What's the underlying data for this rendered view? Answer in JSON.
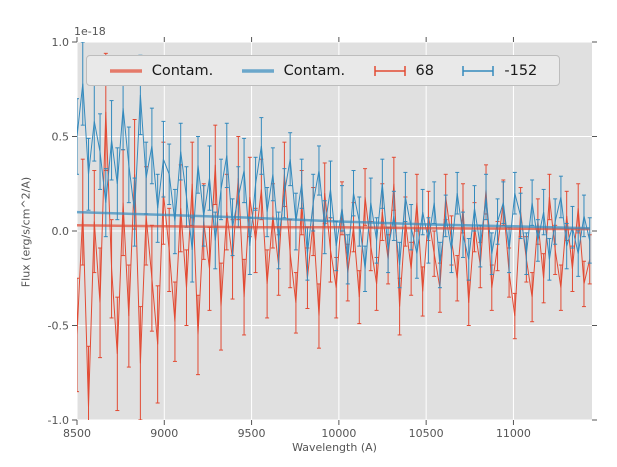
{
  "chart_data": {
    "type": "line",
    "title": "",
    "xlabel": "Wavelength (A)",
    "ylabel": "Flux (erg/s/cm^2/A)",
    "y_offset_label": "1e-18",
    "xlim": [
      8500,
      11450
    ],
    "ylim": [
      -1.0,
      1.0
    ],
    "xticks": [
      8500,
      9000,
      9500,
      10000,
      10500,
      11000
    ],
    "xtick_labels": [
      "8500",
      "9000",
      "9500",
      "10000",
      "10500",
      "11000"
    ],
    "yticks": [
      -1.0,
      -0.5,
      0.0,
      0.5,
      1.0
    ],
    "ytick_labels": [
      "-1.0",
      "-0.5",
      "0.0",
      "0.5",
      "1.0"
    ],
    "grid": true,
    "legend_position": "upper center horizontal",
    "colors": {
      "axes_background": "#e0e0e0",
      "grid": "#ffffff",
      "ticks": "#555555",
      "red": "#E24A33",
      "blue": "#348ABD"
    },
    "x": [
      8500,
      8533,
      8566,
      8599,
      8632,
      8665,
      8698,
      8731,
      8764,
      8797,
      8830,
      8863,
      8896,
      8929,
      8962,
      8995,
      9028,
      9061,
      9094,
      9127,
      9160,
      9193,
      9226,
      9259,
      9292,
      9325,
      9358,
      9391,
      9424,
      9457,
      9490,
      9523,
      9556,
      9589,
      9622,
      9655,
      9688,
      9721,
      9754,
      9787,
      9820,
      9853,
      9886,
      9919,
      9952,
      9985,
      10018,
      10051,
      10084,
      10117,
      10150,
      10183,
      10216,
      10249,
      10282,
      10315,
      10348,
      10381,
      10414,
      10447,
      10480,
      10513,
      10546,
      10579,
      10612,
      10645,
      10678,
      10711,
      10744,
      10777,
      10810,
      10843,
      10876,
      10909,
      10942,
      10975,
      11008,
      11041,
      11074,
      11107,
      11140,
      11173,
      11206,
      11239,
      11272,
      11305,
      11338,
      11371,
      11404,
      11437
    ],
    "series": [
      {
        "name": "Contam.",
        "type": "line",
        "color": "#E24A33",
        "opacity": 0.7,
        "width": 2.5,
        "x": [
          8500,
          9000,
          9500,
          10000,
          10500,
          11000,
          11437
        ],
        "y": [
          0.03,
          0.025,
          0.02,
          0.02,
          0.015,
          0.012,
          0.01
        ]
      },
      {
        "name": "Contam.",
        "type": "line",
        "color": "#348ABD",
        "opacity": 0.7,
        "width": 2.5,
        "x": [
          8500,
          9000,
          9500,
          10000,
          10500,
          11000,
          11437
        ],
        "y": [
          0.1,
          0.085,
          0.07,
          0.05,
          0.035,
          0.025,
          0.015
        ]
      },
      {
        "name": "68",
        "type": "errorbar",
        "color": "#E24A33",
        "y": [
          -0.55,
          0.1,
          -0.93,
          0.05,
          -0.38,
          0.63,
          -0.2,
          -0.65,
          0.15,
          -0.45,
          0.3,
          -0.7,
          0.08,
          -0.25,
          -0.6,
          0.2,
          -0.1,
          -0.48,
          0.12,
          -0.3,
          0.25,
          -0.55,
          0.05,
          -0.2,
          0.35,
          -0.4,
          0.1,
          -0.15,
          0.28,
          -0.35,
          0.18,
          -0.05,
          0.22,
          -0.28,
          0.08,
          -0.18,
          0.3,
          -0.12,
          -0.38,
          0.15,
          -0.25,
          0.05,
          -0.45,
          0.2,
          -0.1,
          -0.3,
          0.12,
          -0.22,
          0.02,
          -0.35,
          0.18,
          -0.08,
          -0.28,
          0.1,
          -0.15,
          0.25,
          -0.4,
          0.05,
          -0.2,
          0.15,
          -0.32,
          0.08,
          -0.12,
          -0.3,
          0.18,
          -0.05,
          -0.25,
          0.12,
          -0.38,
          0.02,
          -0.18,
          0.22,
          -0.3,
          -0.08,
          0.15,
          -0.22,
          -0.45,
          0.1,
          -0.15,
          -0.35,
          0.05,
          -0.25,
          0.18,
          -0.1,
          -0.3,
          0.08,
          -0.2,
          0.12,
          -0.28,
          -0.15
        ],
        "yerr": [
          0.3,
          0.28,
          0.32,
          0.27,
          0.29,
          0.31,
          0.26,
          0.3,
          0.28,
          0.27,
          0.29,
          0.3,
          0.26,
          0.28,
          0.31,
          0.27,
          0.22,
          0.21,
          0.23,
          0.2,
          0.22,
          0.21,
          0.2,
          0.22,
          0.21,
          0.23,
          0.2,
          0.21,
          0.22,
          0.2,
          0.21,
          0.17,
          0.16,
          0.18,
          0.17,
          0.16,
          0.17,
          0.18,
          0.16,
          0.17,
          0.16,
          0.18,
          0.17,
          0.16,
          0.17,
          0.16,
          0.14,
          0.15,
          0.13,
          0.14,
          0.15,
          0.13,
          0.14,
          0.15,
          0.13,
          0.14,
          0.15,
          0.13,
          0.14,
          0.15,
          0.13,
          0.13,
          0.12,
          0.13,
          0.12,
          0.13,
          0.12,
          0.13,
          0.12,
          0.13,
          0.12,
          0.13,
          0.12,
          0.13,
          0.12,
          0.13,
          0.12,
          0.13,
          0.12,
          0.13,
          0.12,
          0.13,
          0.12,
          0.13,
          0.12,
          0.13,
          0.12,
          0.13,
          0.12,
          0.13
        ]
      },
      {
        "name": "-152",
        "type": "errorbar",
        "color": "#348ABD",
        "y": [
          0.5,
          0.78,
          0.3,
          0.58,
          0.42,
          0.15,
          0.48,
          0.25,
          0.65,
          0.35,
          0.1,
          0.72,
          0.28,
          0.45,
          0.12,
          0.38,
          0.3,
          0.05,
          0.42,
          0.18,
          -0.1,
          0.35,
          0.08,
          0.28,
          -0.05,
          0.22,
          0.4,
          0.02,
          0.18,
          0.32,
          -0.08,
          0.25,
          0.45,
          0.1,
          0.3,
          -0.05,
          0.2,
          0.38,
          0.05,
          0.25,
          -0.12,
          0.15,
          0.32,
          0.02,
          0.22,
          -0.08,
          0.12,
          -0.15,
          0.2,
          0.05,
          -0.2,
          0.15,
          -0.05,
          0.25,
          -0.1,
          0.08,
          -0.18,
          0.18,
          0.02,
          -0.12,
          0.1,
          -0.05,
          0.15,
          -0.18,
          0.08,
          -0.1,
          0.2,
          -0.02,
          -0.15,
          0.12,
          -0.08,
          0.18,
          -0.12,
          0.05,
          0.15,
          -0.1,
          0.2,
          0.08,
          -0.12,
          0.15,
          -0.05,
          0.1,
          -0.15,
          0.05,
          0.18,
          -0.08,
          0.02,
          -0.12,
          0.08,
          -0.05
        ],
        "yerr": [
          0.2,
          0.22,
          0.19,
          0.21,
          0.2,
          0.18,
          0.21,
          0.19,
          0.22,
          0.2,
          0.18,
          0.21,
          0.19,
          0.2,
          0.18,
          0.2,
          0.16,
          0.17,
          0.15,
          0.16,
          0.17,
          0.15,
          0.16,
          0.17,
          0.15,
          0.16,
          0.17,
          0.15,
          0.16,
          0.17,
          0.15,
          0.14,
          0.15,
          0.13,
          0.14,
          0.15,
          0.13,
          0.14,
          0.15,
          0.13,
          0.14,
          0.15,
          0.13,
          0.14,
          0.15,
          0.13,
          0.12,
          0.13,
          0.12,
          0.13,
          0.12,
          0.13,
          0.12,
          0.13,
          0.12,
          0.13,
          0.12,
          0.13,
          0.12,
          0.13,
          0.12,
          0.12,
          0.11,
          0.12,
          0.11,
          0.12,
          0.11,
          0.12,
          0.11,
          0.12,
          0.11,
          0.12,
          0.11,
          0.12,
          0.11,
          0.12,
          0.11,
          0.12,
          0.11,
          0.12,
          0.11,
          0.12,
          0.11,
          0.12,
          0.11,
          0.12,
          0.11,
          0.12,
          0.11,
          0.12
        ]
      }
    ]
  }
}
